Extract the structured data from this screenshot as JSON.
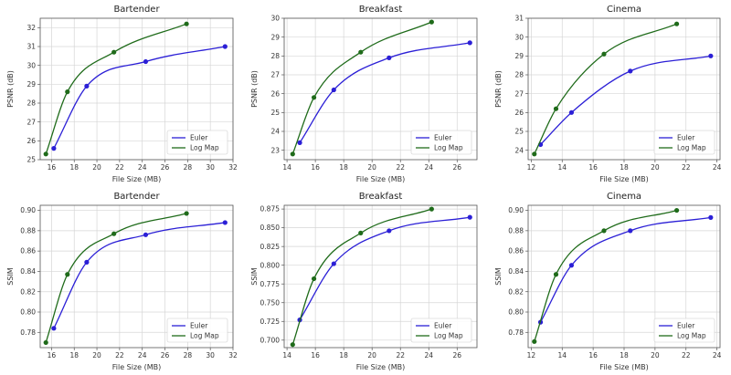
{
  "figure": {
    "colors": {
      "euler": "#2b1fd6",
      "logmap": "#1f6b1a",
      "grid": "#d6d6d6",
      "axis": "#555555"
    }
  },
  "chart_data": [
    {
      "type": "line",
      "title": "Bartender",
      "xlabel": "File Size (MB)",
      "ylabel": "PSNR (dB)",
      "xlim": [
        15,
        32
      ],
      "ylim": [
        25,
        32.5
      ],
      "xticks": [
        16,
        18,
        20,
        22,
        24,
        26,
        28,
        30,
        32
      ],
      "yticks": [
        25,
        26,
        27,
        28,
        29,
        30,
        31,
        32
      ],
      "ytick_decimals": 0,
      "legend": "lower-right",
      "series": [
        {
          "name": "Euler",
          "x": [
            16.2,
            19.1,
            24.3,
            31.3
          ],
          "y": [
            25.6,
            28.9,
            30.2,
            31.0
          ]
        },
        {
          "name": "Log Map",
          "x": [
            15.5,
            17.4,
            21.5,
            27.9
          ],
          "y": [
            25.3,
            28.6,
            30.7,
            32.2
          ]
        }
      ]
    },
    {
      "type": "line",
      "title": "Breakfast",
      "xlabel": "File Size (MB)",
      "ylabel": "PSNR (dB)",
      "xlim": [
        13.8,
        27.4
      ],
      "ylim": [
        22.5,
        30
      ],
      "xticks": [
        14,
        16,
        18,
        20,
        22,
        24,
        26
      ],
      "yticks": [
        23,
        24,
        25,
        26,
        27,
        28,
        29,
        30
      ],
      "ytick_decimals": 0,
      "legend": "lower-right",
      "series": [
        {
          "name": "Euler",
          "x": [
            14.9,
            17.3,
            21.2,
            26.9
          ],
          "y": [
            23.4,
            26.2,
            27.9,
            28.7
          ]
        },
        {
          "name": "Log Map",
          "x": [
            14.4,
            15.9,
            19.2,
            24.2
          ],
          "y": [
            22.8,
            25.8,
            28.2,
            29.8
          ]
        }
      ]
    },
    {
      "type": "line",
      "title": "Cinema",
      "xlabel": "File Size (MB)",
      "ylabel": "PSNR (dB)",
      "xlim": [
        11.8,
        24.2
      ],
      "ylim": [
        23.5,
        31
      ],
      "xticks": [
        12,
        14,
        16,
        18,
        20,
        22,
        24
      ],
      "yticks": [
        24,
        25,
        26,
        27,
        28,
        29,
        30,
        31
      ],
      "ytick_decimals": 0,
      "legend": "lower-right",
      "series": [
        {
          "name": "Euler",
          "x": [
            12.6,
            14.6,
            18.4,
            23.6
          ],
          "y": [
            24.3,
            26.0,
            28.2,
            29.0
          ]
        },
        {
          "name": "Log Map",
          "x": [
            12.2,
            13.6,
            16.7,
            21.4
          ],
          "y": [
            23.8,
            26.2,
            29.1,
            30.7
          ]
        }
      ]
    },
    {
      "type": "line",
      "title": "Bartender",
      "xlabel": "File Size (MB)",
      "ylabel": "SSIM",
      "xlim": [
        15,
        32
      ],
      "ylim": [
        0.765,
        0.905
      ],
      "xticks": [
        16,
        18,
        20,
        22,
        24,
        26,
        28,
        30,
        32
      ],
      "yticks": [
        0.78,
        0.8,
        0.82,
        0.84,
        0.86,
        0.88,
        0.9
      ],
      "ytick_decimals": 2,
      "legend": "lower-right",
      "series": [
        {
          "name": "Euler",
          "x": [
            16.2,
            19.1,
            24.3,
            31.3
          ],
          "y": [
            0.784,
            0.849,
            0.876,
            0.888
          ]
        },
        {
          "name": "Log Map",
          "x": [
            15.5,
            17.4,
            21.5,
            27.9
          ],
          "y": [
            0.77,
            0.837,
            0.877,
            0.897
          ]
        }
      ]
    },
    {
      "type": "line",
      "title": "Breakfast",
      "xlabel": "File Size (MB)",
      "ylabel": "SSIM",
      "xlim": [
        13.8,
        27.4
      ],
      "ylim": [
        0.69,
        0.88
      ],
      "xticks": [
        14,
        16,
        18,
        20,
        22,
        24,
        26
      ],
      "yticks": [
        0.7,
        0.725,
        0.75,
        0.775,
        0.8,
        0.825,
        0.85,
        0.875
      ],
      "ytick_decimals": 3,
      "legend": "lower-right",
      "series": [
        {
          "name": "Euler",
          "x": [
            14.9,
            17.3,
            21.2,
            26.9
          ],
          "y": [
            0.727,
            0.802,
            0.846,
            0.864
          ]
        },
        {
          "name": "Log Map",
          "x": [
            14.4,
            15.9,
            19.2,
            24.2
          ],
          "y": [
            0.694,
            0.782,
            0.843,
            0.875
          ]
        }
      ]
    },
    {
      "type": "line",
      "title": "Cinema",
      "xlabel": "File Size (MB)",
      "ylabel": "SSIM",
      "xlim": [
        11.8,
        24.2
      ],
      "ylim": [
        0.765,
        0.905
      ],
      "xticks": [
        12,
        14,
        16,
        18,
        20,
        22,
        24
      ],
      "yticks": [
        0.78,
        0.8,
        0.82,
        0.84,
        0.86,
        0.88,
        0.9
      ],
      "ytick_decimals": 2,
      "legend": "lower-right",
      "series": [
        {
          "name": "Euler",
          "x": [
            12.6,
            14.6,
            18.4,
            23.6
          ],
          "y": [
            0.79,
            0.846,
            0.88,
            0.893
          ]
        },
        {
          "name": "Log Map",
          "x": [
            12.2,
            13.6,
            16.7,
            21.4
          ],
          "y": [
            0.771,
            0.837,
            0.88,
            0.9
          ]
        }
      ]
    }
  ]
}
